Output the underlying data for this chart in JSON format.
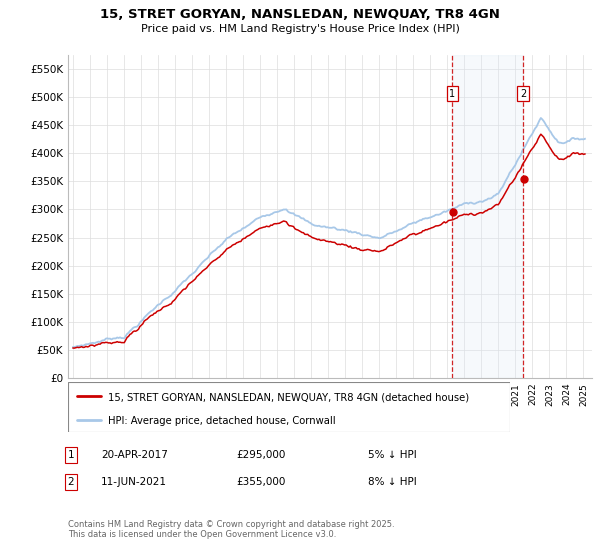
{
  "title_line1": "15, STRET GORYAN, NANSLEDAN, NEWQUAY, TR8 4GN",
  "title_line2": "Price paid vs. HM Land Registry's House Price Index (HPI)",
  "ylim": [
    0,
    575000
  ],
  "yticks": [
    0,
    50000,
    100000,
    150000,
    200000,
    250000,
    300000,
    350000,
    400000,
    450000,
    500000,
    550000
  ],
  "ytick_labels": [
    "£0",
    "£50K",
    "£100K",
    "£150K",
    "£200K",
    "£250K",
    "£300K",
    "£350K",
    "£400K",
    "£450K",
    "£500K",
    "£550K"
  ],
  "x_start_year": 1995,
  "x_end_year": 2025,
  "hpi_color": "#a8c8e8",
  "hpi_fill_color": "#dceaf7",
  "price_color": "#cc0000",
  "vline_color": "#cc0000",
  "sale1_year": 2017.3,
  "sale1_price": 295000,
  "sale2_year": 2021.45,
  "sale2_price": 355000,
  "legend_label1": "15, STRET GORYAN, NANSLEDAN, NEWQUAY, TR8 4GN (detached house)",
  "legend_label2": "HPI: Average price, detached house, Cornwall",
  "note1_date": "20-APR-2017",
  "note1_price": "£295,000",
  "note1_hpi": "5% ↓ HPI",
  "note2_date": "11-JUN-2021",
  "note2_price": "£355,000",
  "note2_hpi": "8% ↓ HPI",
  "footer": "Contains HM Land Registry data © Crown copyright and database right 2025.\nThis data is licensed under the Open Government Licence v3.0.",
  "background_color": "#ffffff",
  "grid_color": "#dddddd"
}
